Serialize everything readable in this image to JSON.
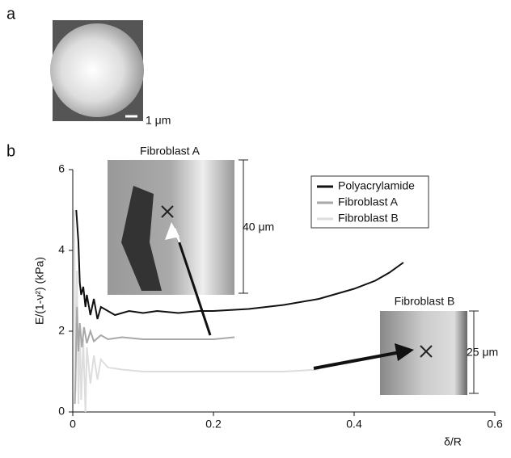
{
  "panel_a": {
    "label": "a",
    "scale_label": "1 μm"
  },
  "chart_data": {
    "type": "line",
    "panel_label": "b",
    "x_label": "δ/R",
    "y_label": "E/(1-ν²)  (kPa)",
    "xlim": [
      0,
      0.6
    ],
    "xticks": [
      0,
      0.2,
      0.4,
      0.6
    ],
    "ylim": [
      0,
      6
    ],
    "yticks": [
      0,
      2,
      4,
      6
    ],
    "grid": false,
    "legend": "upper right",
    "series": [
      {
        "name": "Polyacrylamide",
        "color": "#111111",
        "x": [
          0.005,
          0.008,
          0.01,
          0.012,
          0.015,
          0.018,
          0.02,
          0.025,
          0.03,
          0.035,
          0.04,
          0.05,
          0.06,
          0.08,
          0.1,
          0.12,
          0.15,
          0.18,
          0.2,
          0.25,
          0.3,
          0.35,
          0.4,
          0.43,
          0.45,
          0.47
        ],
        "values": [
          5.0,
          4.2,
          3.2,
          2.9,
          3.1,
          2.6,
          2.9,
          2.4,
          2.8,
          2.3,
          2.6,
          2.5,
          2.4,
          2.5,
          2.45,
          2.5,
          2.45,
          2.5,
          2.5,
          2.55,
          2.65,
          2.8,
          3.05,
          3.25,
          3.45,
          3.7
        ]
      },
      {
        "name": "Fibroblast A",
        "color": "#a8a8a8",
        "x": [
          0.003,
          0.006,
          0.008,
          0.01,
          0.013,
          0.016,
          0.02,
          0.025,
          0.03,
          0.04,
          0.05,
          0.07,
          0.1,
          0.15,
          0.2,
          0.23
        ],
        "values": [
          0.2,
          2.6,
          1.5,
          2.2,
          1.6,
          2.1,
          1.7,
          2.0,
          1.75,
          1.9,
          1.8,
          1.85,
          1.8,
          1.8,
          1.8,
          1.85
        ]
      },
      {
        "name": "Fibroblast B",
        "color": "#dddddd",
        "x": [
          0.002,
          0.004,
          0.006,
          0.008,
          0.01,
          0.012,
          0.015,
          0.018,
          0.02,
          0.025,
          0.03,
          0.035,
          0.04,
          0.05,
          0.07,
          0.1,
          0.15,
          0.2,
          0.3,
          0.35
        ],
        "values": [
          5.0,
          0.5,
          3.5,
          0.2,
          2.0,
          0.3,
          1.8,
          0,
          1.6,
          0.7,
          1.4,
          0.8,
          1.3,
          1.1,
          1.05,
          1.0,
          1.0,
          1.0,
          1.0,
          1.05
        ]
      }
    ],
    "insets": [
      {
        "title": "Fibroblast A",
        "scale_label": "40 μm"
      },
      {
        "title": "Fibroblast B",
        "scale_label": "25 μm"
      }
    ]
  }
}
